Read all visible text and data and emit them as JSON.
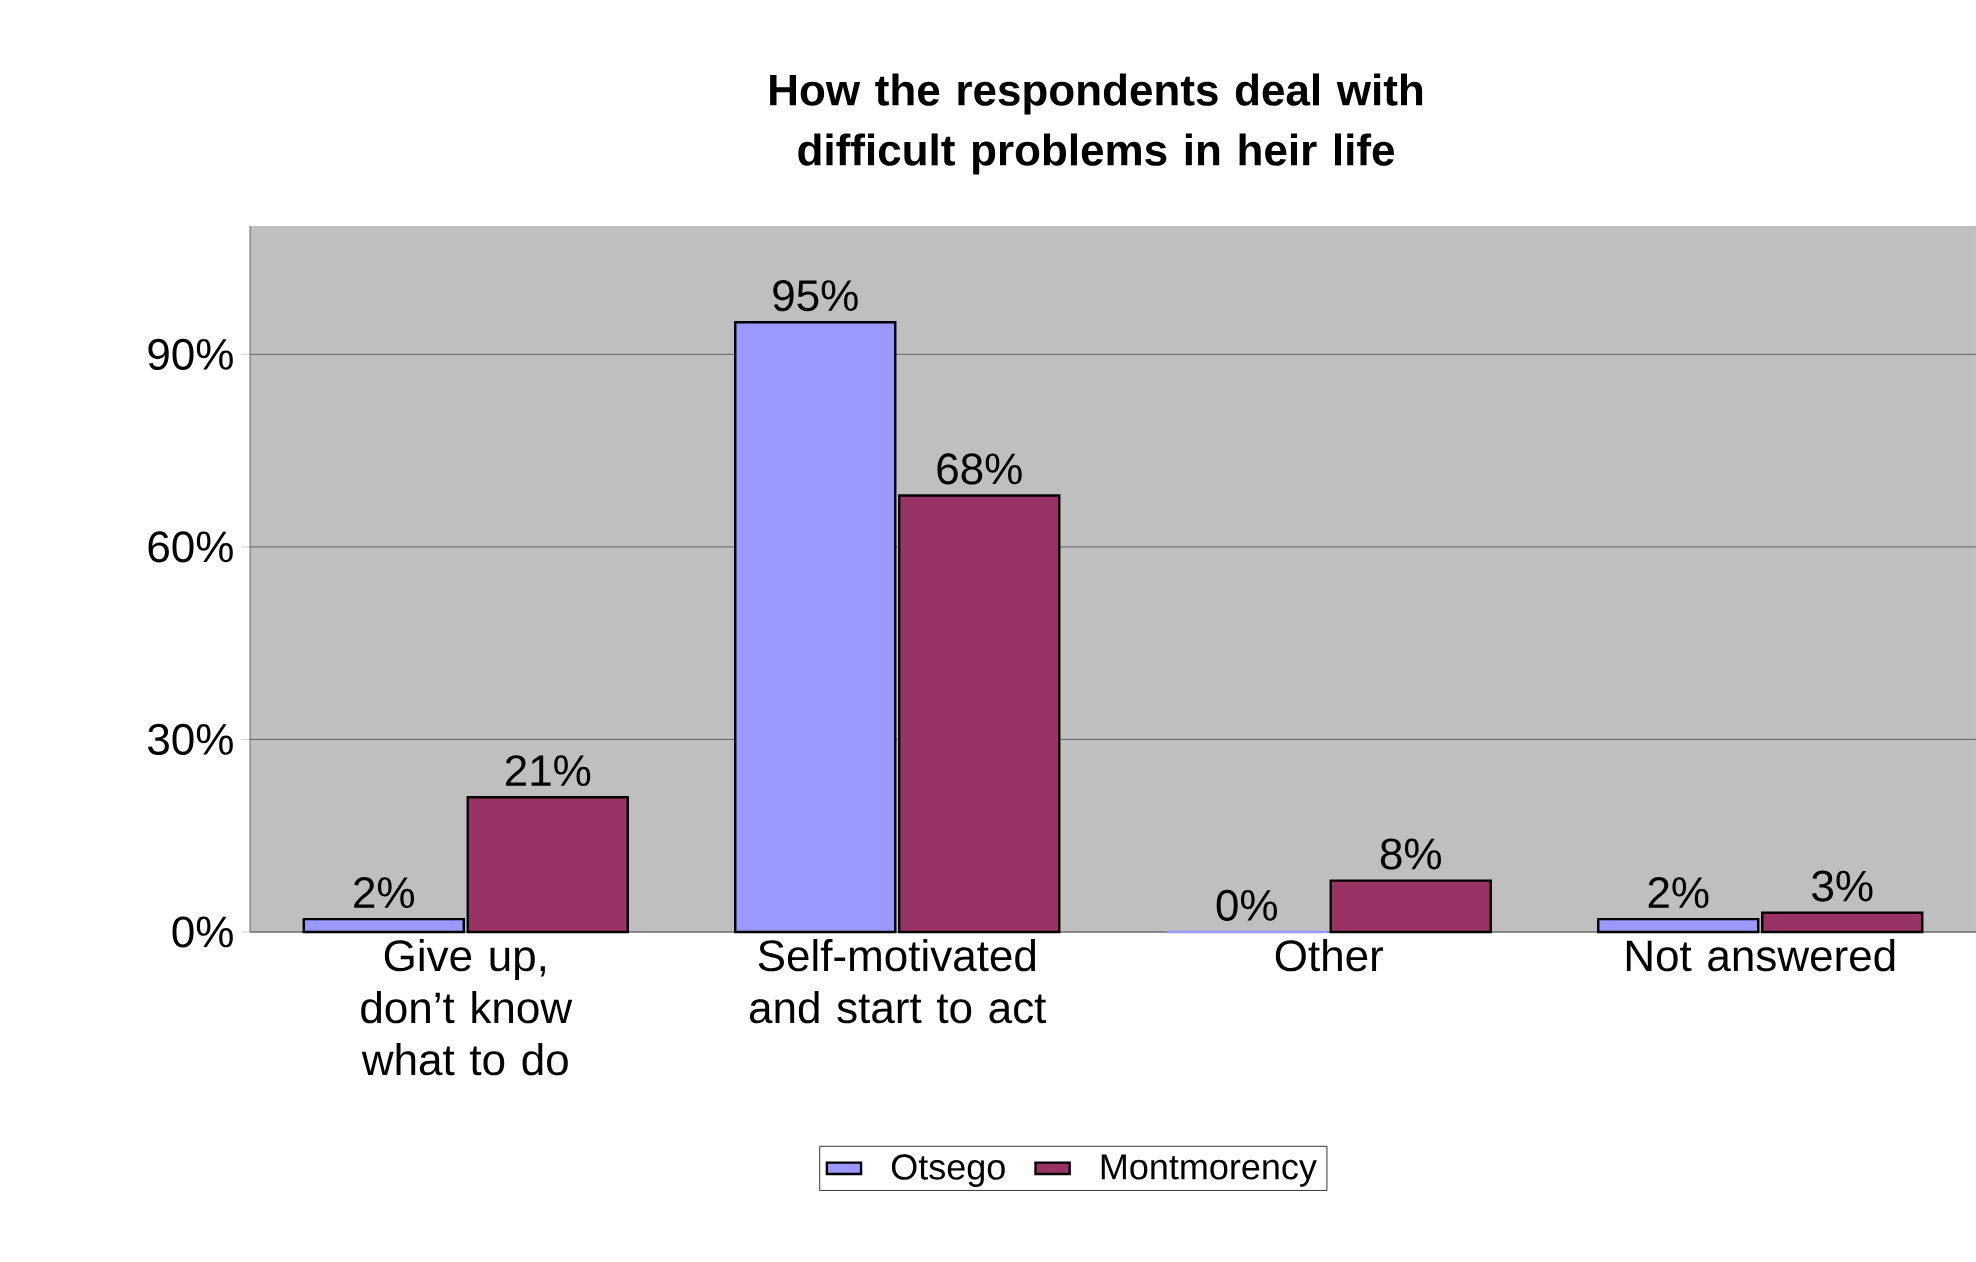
{
  "chart_data": {
    "type": "bar",
    "title": "How the respondents deal with difficult problems in heir life",
    "categories": [
      "Give up, don’t know what to do",
      "Self-motivated and start to act",
      "Other",
      "Not answered"
    ],
    "series": [
      {
        "name": "Otsego",
        "color": "#9999ff",
        "values": [
          2,
          95,
          0,
          2
        ],
        "value_labels": [
          "2%",
          "95%",
          "0%",
          "2%"
        ]
      },
      {
        "name": "Montmorency",
        "color": "#993366",
        "values": [
          21,
          68,
          8,
          3
        ],
        "value_labels": [
          "21%",
          "68%",
          "8%",
          "3%"
        ]
      }
    ],
    "ylim": [
      0,
      110
    ],
    "yticks": [
      {
        "value": 0,
        "label": "0%"
      },
      {
        "value": 30,
        "label": "30%"
      },
      {
        "value": 60,
        "label": "60%"
      },
      {
        "value": 90,
        "label": "90%"
      }
    ],
    "grid": "y",
    "legend": "bottom"
  }
}
